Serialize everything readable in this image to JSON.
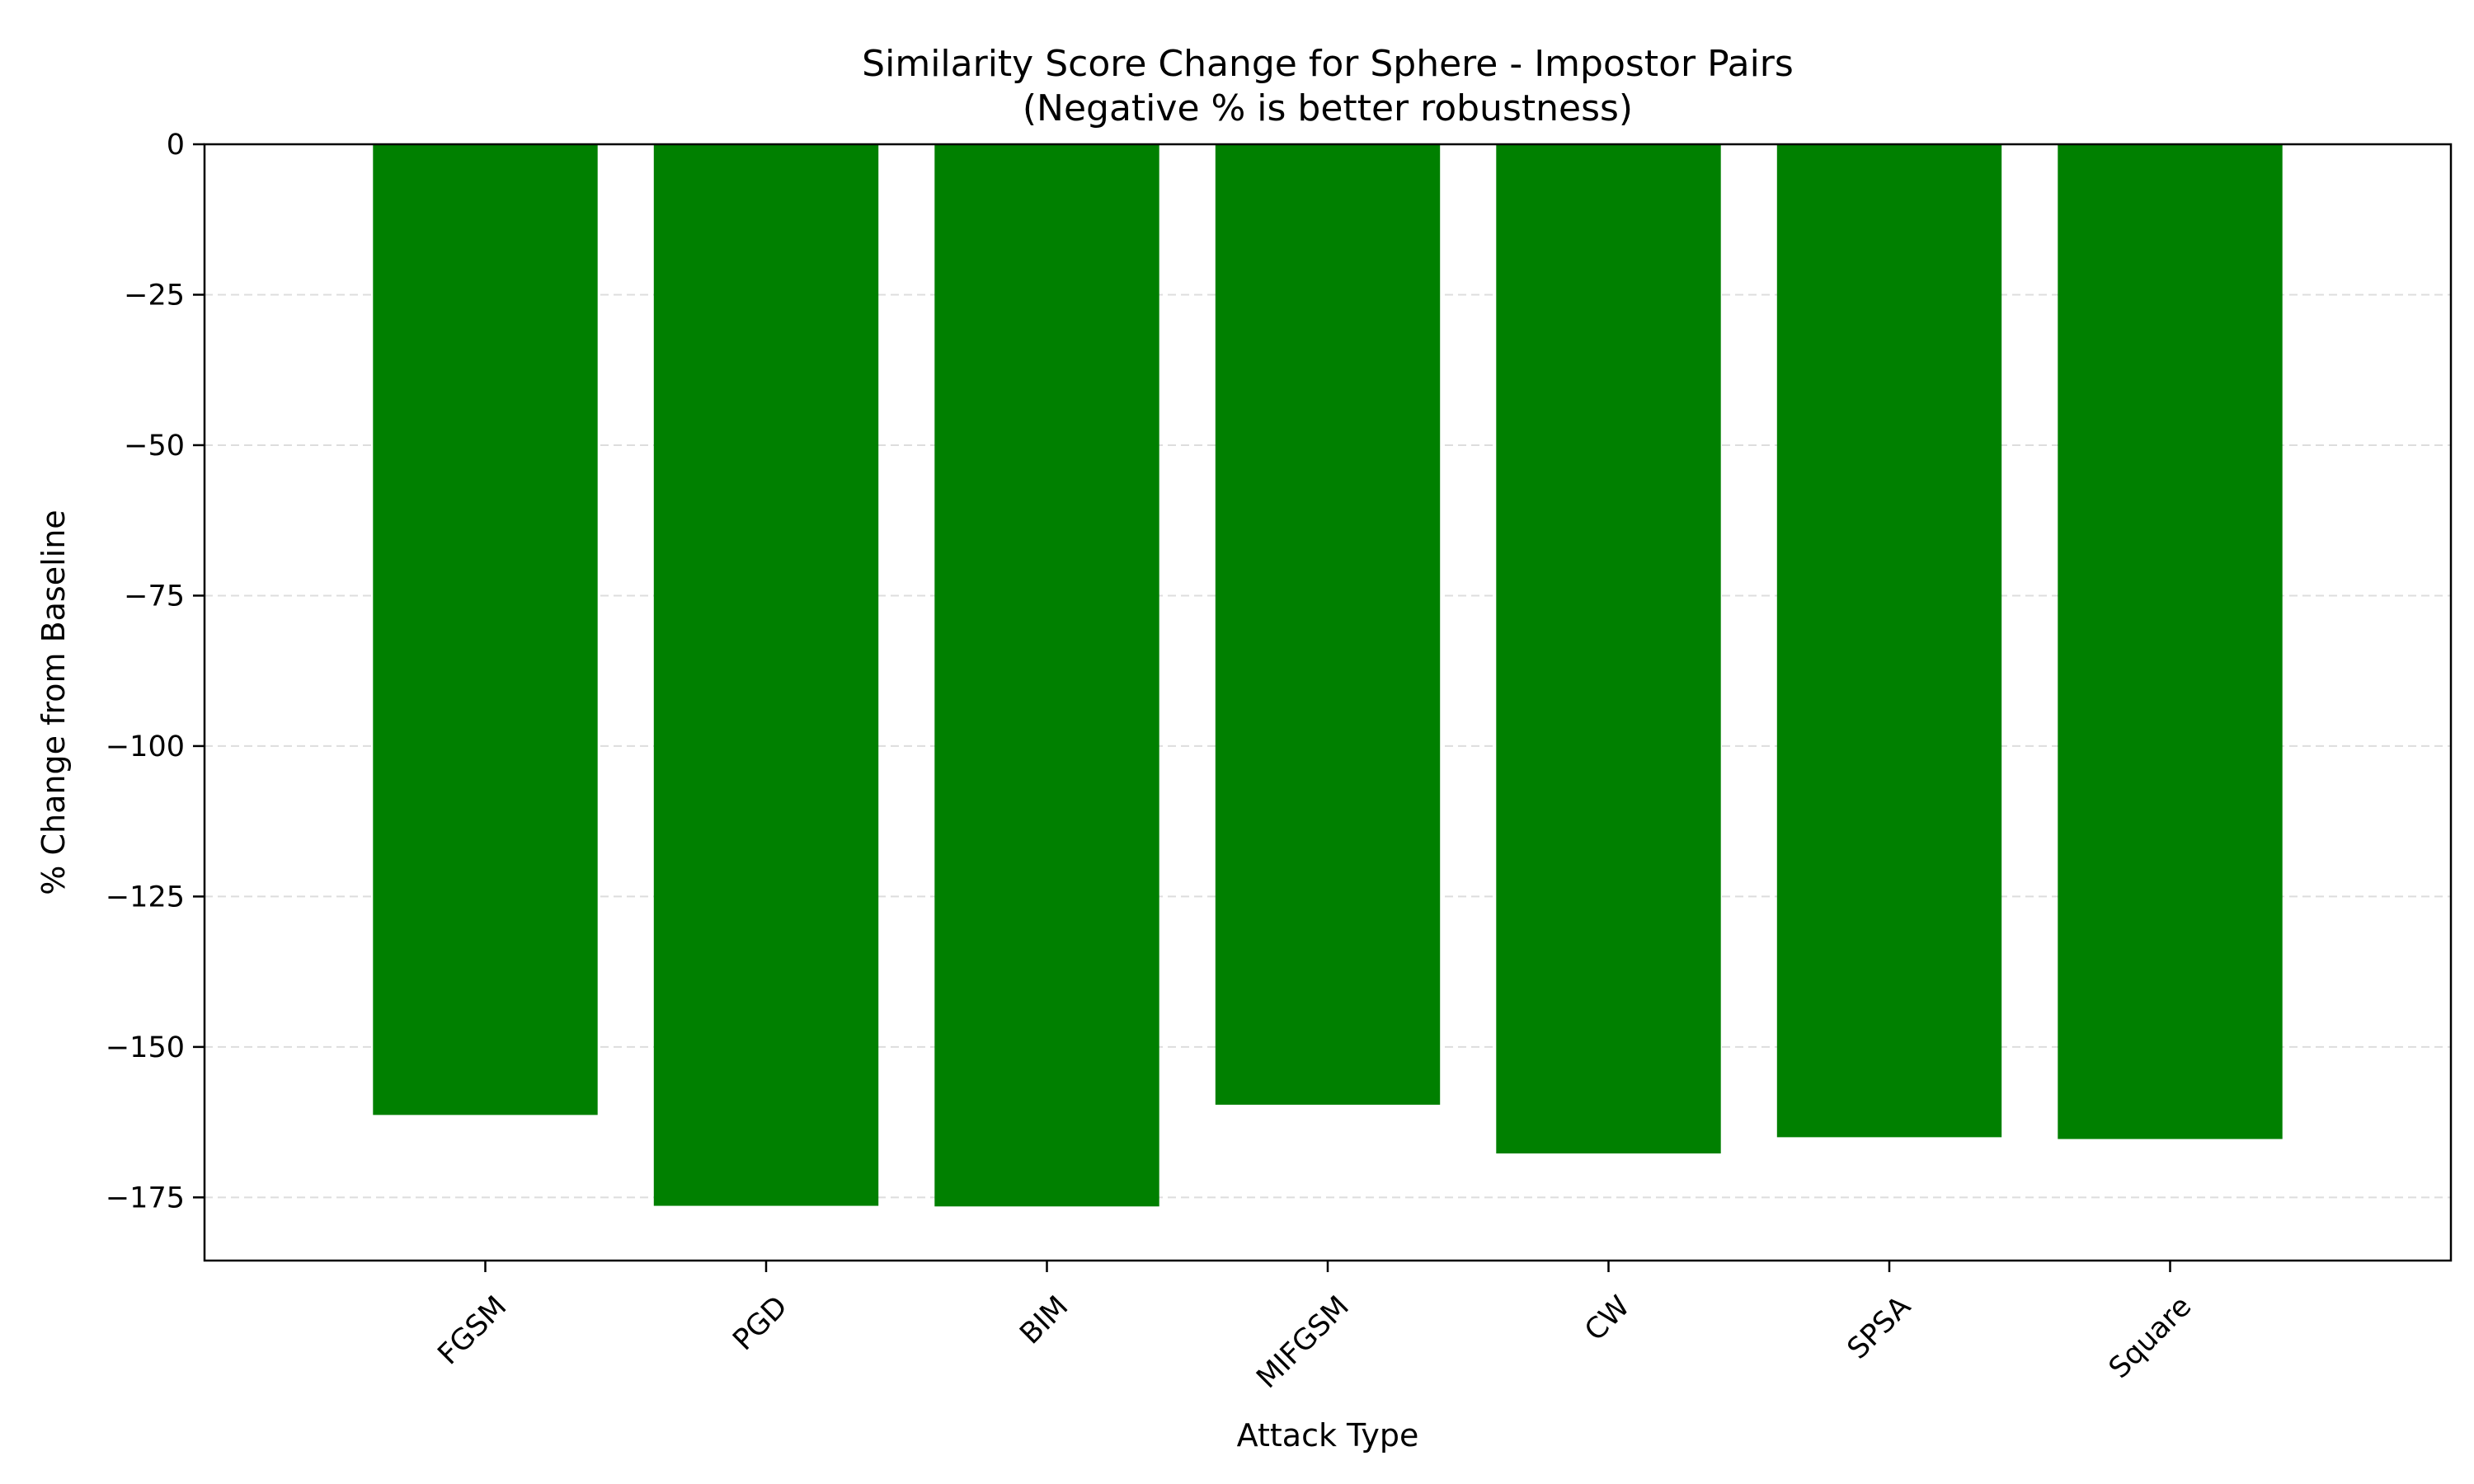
{
  "chart_data": {
    "type": "bar",
    "title": "Similarity Score Change for Sphere - Impostor Pairs",
    "subtitle": "(Negative % is better robustness)",
    "xlabel": "Attack Type",
    "ylabel": "% Change from Baseline",
    "categories": [
      "FGSM",
      "PGD",
      "BIM",
      "MIFGSM",
      "CW",
      "SPSA",
      "Square"
    ],
    "values": [
      -161.3,
      -176.4,
      -176.5,
      -159.6,
      -167.7,
      -165.0,
      -165.3
    ],
    "ylim": [
      -185.5,
      0
    ],
    "yticks": [
      0,
      -25,
      -50,
      -75,
      -100,
      -125,
      -150,
      -175
    ],
    "ytick_labels": [
      "0",
      "−25",
      "−50",
      "−75",
      "−100",
      "−125",
      "−150",
      "−175"
    ],
    "grid": "y-dashed",
    "bar_color": "#008000",
    "grid_color": "#dddddd",
    "legend": "none"
  }
}
